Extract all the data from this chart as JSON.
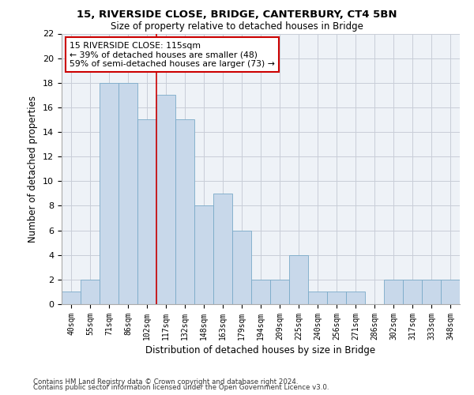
{
  "title_line1": "15, RIVERSIDE CLOSE, BRIDGE, CANTERBURY, CT4 5BN",
  "title_line2": "Size of property relative to detached houses in Bridge",
  "xlabel": "Distribution of detached houses by size in Bridge",
  "ylabel": "Number of detached properties",
  "categories": [
    "40sqm",
    "55sqm",
    "71sqm",
    "86sqm",
    "102sqm",
    "117sqm",
    "132sqm",
    "148sqm",
    "163sqm",
    "179sqm",
    "194sqm",
    "209sqm",
    "225sqm",
    "240sqm",
    "256sqm",
    "271sqm",
    "286sqm",
    "302sqm",
    "317sqm",
    "333sqm",
    "348sqm"
  ],
  "values": [
    1,
    2,
    18,
    18,
    15,
    17,
    15,
    8,
    9,
    6,
    2,
    2,
    4,
    1,
    1,
    1,
    0,
    2,
    2,
    2,
    2
  ],
  "bar_color": "#c8d8ea",
  "bar_edge_color": "#7aaac8",
  "ylim": [
    0,
    22
  ],
  "yticks": [
    0,
    2,
    4,
    6,
    8,
    10,
    12,
    14,
    16,
    18,
    20,
    22
  ],
  "vline_color": "#cc0000",
  "vline_x_index": 4.5,
  "annotation_text_line1": "15 RIVERSIDE CLOSE: 115sqm",
  "annotation_text_line2": "← 39% of detached houses are smaller (48)",
  "annotation_text_line3": "59% of semi-detached houses are larger (73) →",
  "footer_line1": "Contains HM Land Registry data © Crown copyright and database right 2024.",
  "footer_line2": "Contains public sector information licensed under the Open Government Licence v3.0.",
  "plot_bg_color": "#eef2f7",
  "fig_bg_color": "#ffffff",
  "grid_color": "#c8cdd8"
}
